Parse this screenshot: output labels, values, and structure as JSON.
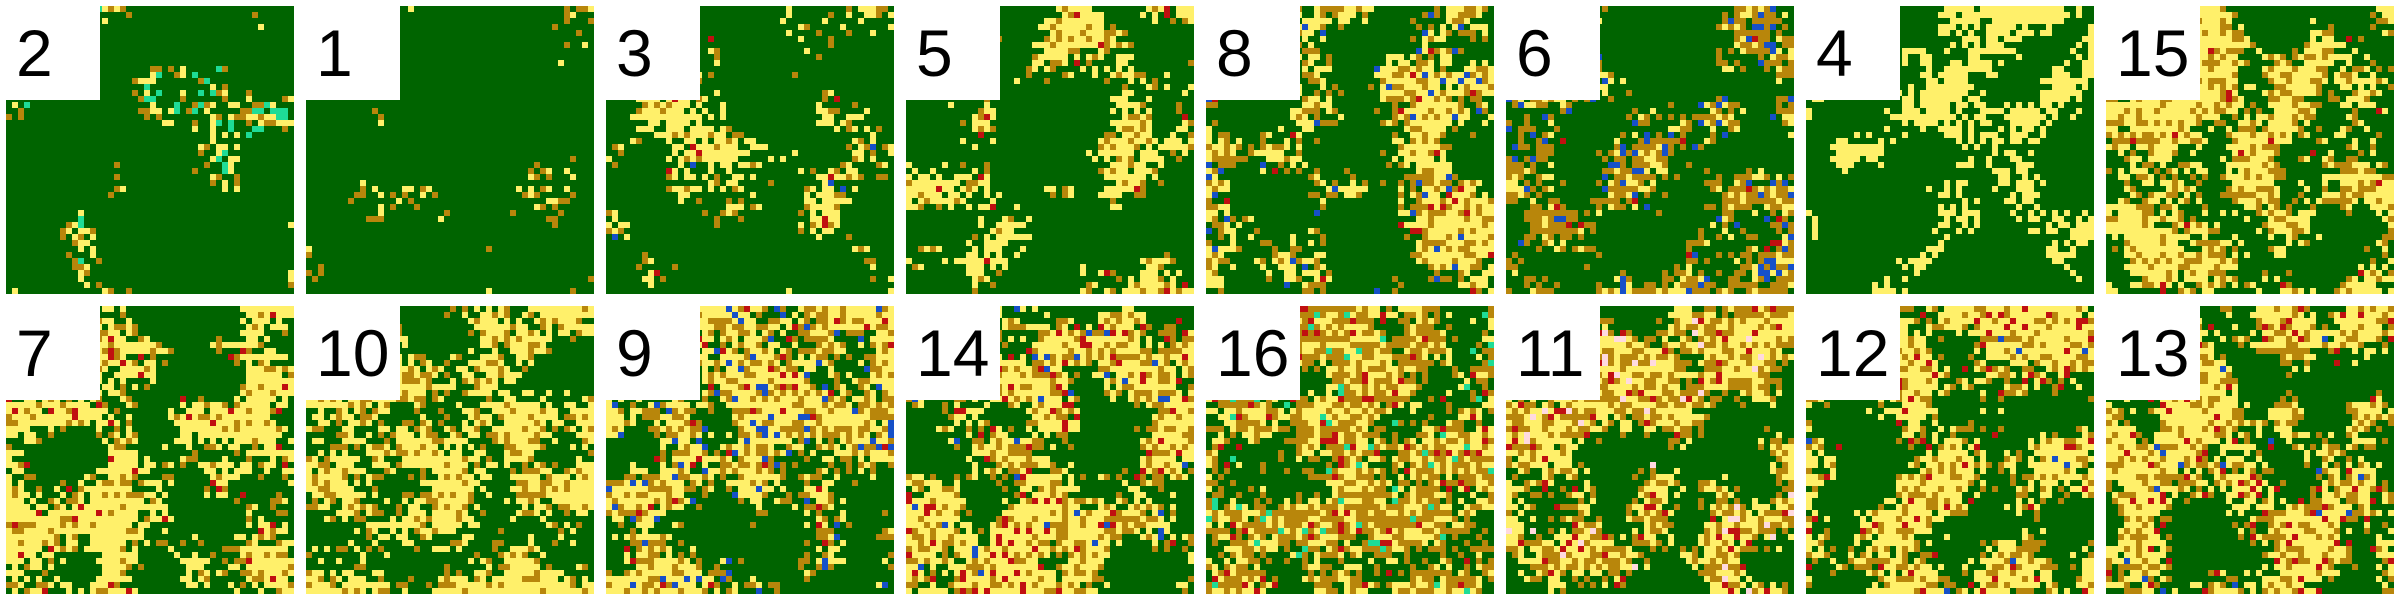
{
  "palette": {
    "forest": "#006400",
    "shrub": "#B8860B",
    "grass": "#FFF06A",
    "water": "#1650C8",
    "built": "#C01010",
    "wetland": "#1EDC96",
    "snow": "#FFDADF"
  },
  "tiles": [
    {
      "label": "2",
      "mix": {
        "forest": 0.9,
        "grass": 0.06,
        "shrub": 0.01,
        "wetland": 0.03
      }
    },
    {
      "label": "1",
      "mix": {
        "forest": 0.96,
        "grass": 0.03,
        "shrub": 0.01
      }
    },
    {
      "label": "3",
      "mix": {
        "forest": 0.8,
        "grass": 0.17,
        "shrub": 0.02,
        "water": 0.005,
        "built": 0.005
      }
    },
    {
      "label": "5",
      "mix": {
        "forest": 0.74,
        "grass": 0.23,
        "shrub": 0.02,
        "built": 0.01
      }
    },
    {
      "label": "8",
      "mix": {
        "forest": 0.58,
        "grass": 0.26,
        "shrub": 0.12,
        "water": 0.03,
        "built": 0.01
      }
    },
    {
      "label": "6",
      "mix": {
        "forest": 0.62,
        "shrub": 0.22,
        "grass": 0.1,
        "water": 0.05,
        "built": 0.01
      }
    },
    {
      "label": "4",
      "mix": {
        "forest": 0.74,
        "grass": 0.26
      }
    },
    {
      "label": "15",
      "mix": {
        "forest": 0.45,
        "grass": 0.4,
        "shrub": 0.14,
        "built": 0.01
      }
    },
    {
      "label": "7",
      "mix": {
        "forest": 0.5,
        "grass": 0.42,
        "shrub": 0.05,
        "built": 0.03
      }
    },
    {
      "label": "10",
      "mix": {
        "forest": 0.45,
        "grass": 0.45,
        "shrub": 0.1
      }
    },
    {
      "label": "9",
      "mix": {
        "forest": 0.45,
        "grass": 0.33,
        "shrub": 0.16,
        "water": 0.04,
        "built": 0.02
      }
    },
    {
      "label": "14",
      "mix": {
        "forest": 0.4,
        "grass": 0.38,
        "shrub": 0.15,
        "built": 0.05,
        "water": 0.02
      }
    },
    {
      "label": "16",
      "mix": {
        "forest": 0.3,
        "shrub": 0.35,
        "grass": 0.28,
        "built": 0.04,
        "wetland": 0.03
      }
    },
    {
      "label": "11",
      "mix": {
        "forest": 0.45,
        "grass": 0.3,
        "shrub": 0.2,
        "built": 0.03,
        "snow": 0.02
      }
    },
    {
      "label": "12",
      "mix": {
        "forest": 0.5,
        "grass": 0.35,
        "shrub": 0.1,
        "built": 0.04,
        "water": 0.01
      }
    },
    {
      "label": "13",
      "mix": {
        "forest": 0.45,
        "grass": 0.35,
        "shrub": 0.15,
        "built": 0.04,
        "water": 0.01
      }
    }
  ]
}
